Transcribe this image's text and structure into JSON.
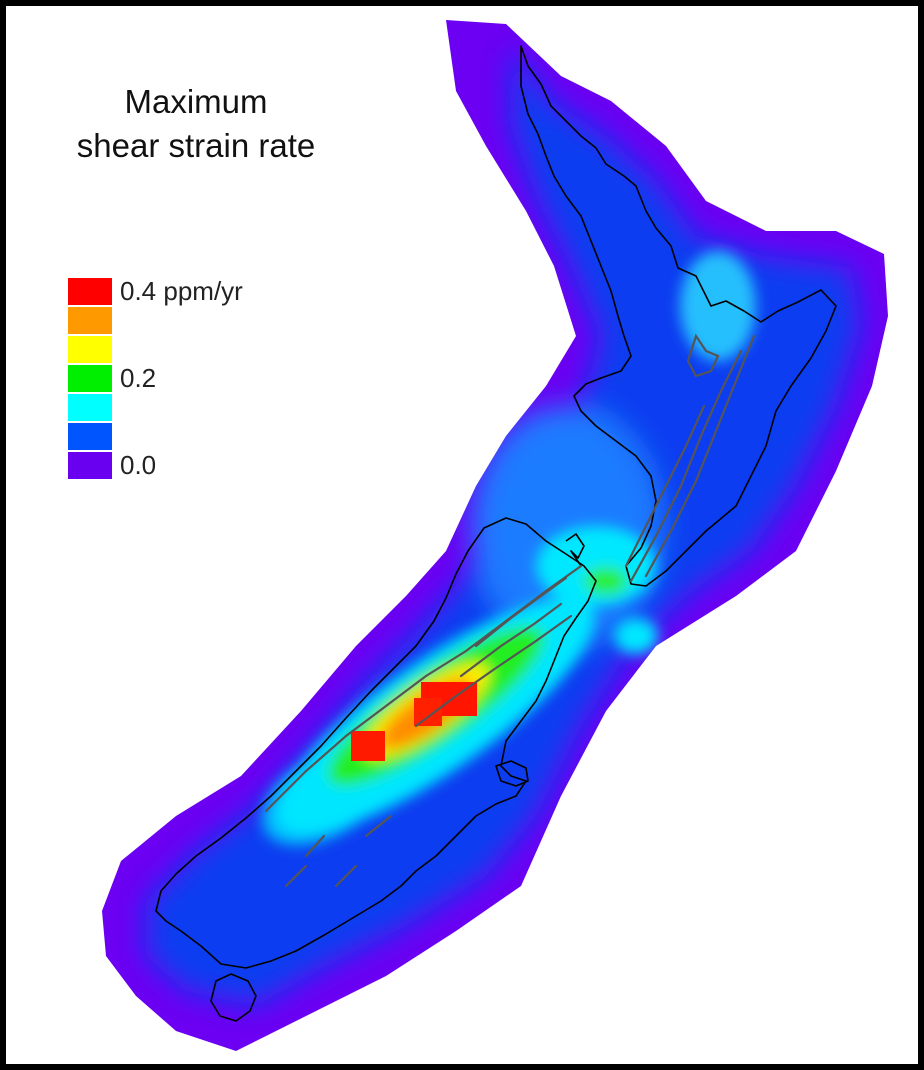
{
  "title": {
    "line1": "Maximum",
    "line2": "shear strain rate"
  },
  "legend": {
    "top_label": "0.4 ppm/yr",
    "mid_label": "0.2",
    "bottom_label": "0.0",
    "swatches": [
      {
        "name": "legend-swatch-red",
        "color": "#ff0000"
      },
      {
        "name": "legend-swatch-orange",
        "color": "#ff9900"
      },
      {
        "name": "legend-swatch-yellow",
        "color": "#ffff00"
      },
      {
        "name": "legend-swatch-green",
        "color": "#00ee00"
      },
      {
        "name": "legend-swatch-cyan",
        "color": "#00ffff"
      },
      {
        "name": "legend-swatch-blue",
        "color": "#0055ff"
      },
      {
        "name": "legend-swatch-violet",
        "color": "#6a00f0"
      }
    ]
  },
  "colors": {
    "background": "#ffffff",
    "frame": "#000000",
    "coastline": "#000000",
    "fault_lines": "#555555"
  }
}
